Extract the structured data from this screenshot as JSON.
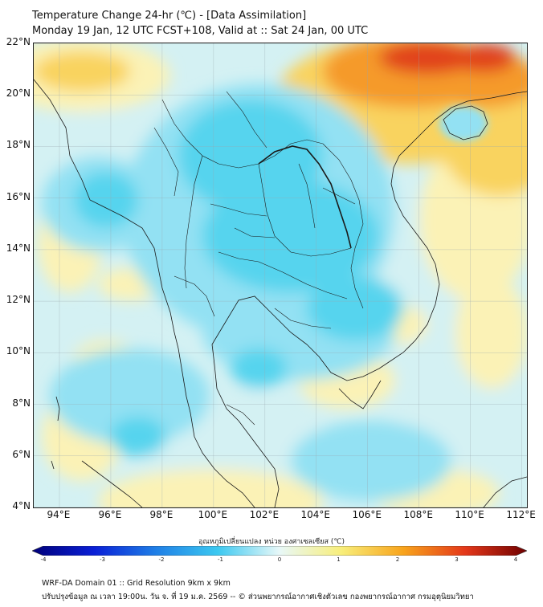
{
  "title": {
    "line1": "Temperature Change 24-hr (℃) - [Data Assimilation]",
    "line2": "Monday 19 Jan, 12 UTC FCST+108, Valid at :: Sat 24 Jan, 00 UTC"
  },
  "map": {
    "lat_labels": [
      "22°N",
      "20°N",
      "18°N",
      "16°N",
      "14°N",
      "12°N",
      "10°N",
      "8°N",
      "6°N",
      "4°N"
    ],
    "lon_labels": [
      "94°E",
      "96°E",
      "98°E",
      "100°E",
      "102°E",
      "104°E",
      "106°E",
      "108°E",
      "110°E",
      "112°E"
    ],
    "lat_range": [
      4,
      22
    ],
    "lon_range": [
      93,
      112.2
    ],
    "field_colors": {
      "cool_strong": "#56d4ee",
      "cool": "#93e1f3",
      "neutral": "#d4f1f3",
      "warm_light": "#fbf2b6",
      "warm": "#f9d35e",
      "hot": "#f59a2a",
      "very_hot": "#e1421e",
      "border": "#1a1a1a"
    }
  },
  "colorbar": {
    "caption": "อุณหภูมิเปลี่ยนแปลง หน่วย องศาเซลเซียส (℃)",
    "min": -4,
    "max": 4,
    "tick_labels": [
      "-4",
      "-3",
      "-2",
      "-1",
      "0",
      "1",
      "2",
      "3",
      "4"
    ],
    "stops": [
      "#00007a",
      "#0a1fd6",
      "#1f7fe6",
      "#3cc8f0",
      "#e8f8f8",
      "#f8ee7a",
      "#f8a41c",
      "#e4381a",
      "#700000"
    ]
  },
  "footer": {
    "line1": "WRF-DA Domain 01 :: Grid Resolution 9km x 9km",
    "line2": "ปรับปรุงข้อมูล ณ เวลา 19:00น. วัน จ. ที่ 19 ม.ค. 2569 -- © ส่วนพยากรณ์อากาศเชิงตัวเลข กองพยากรณ์อากาศ กรมอุตุนิยมวิทยา"
  }
}
